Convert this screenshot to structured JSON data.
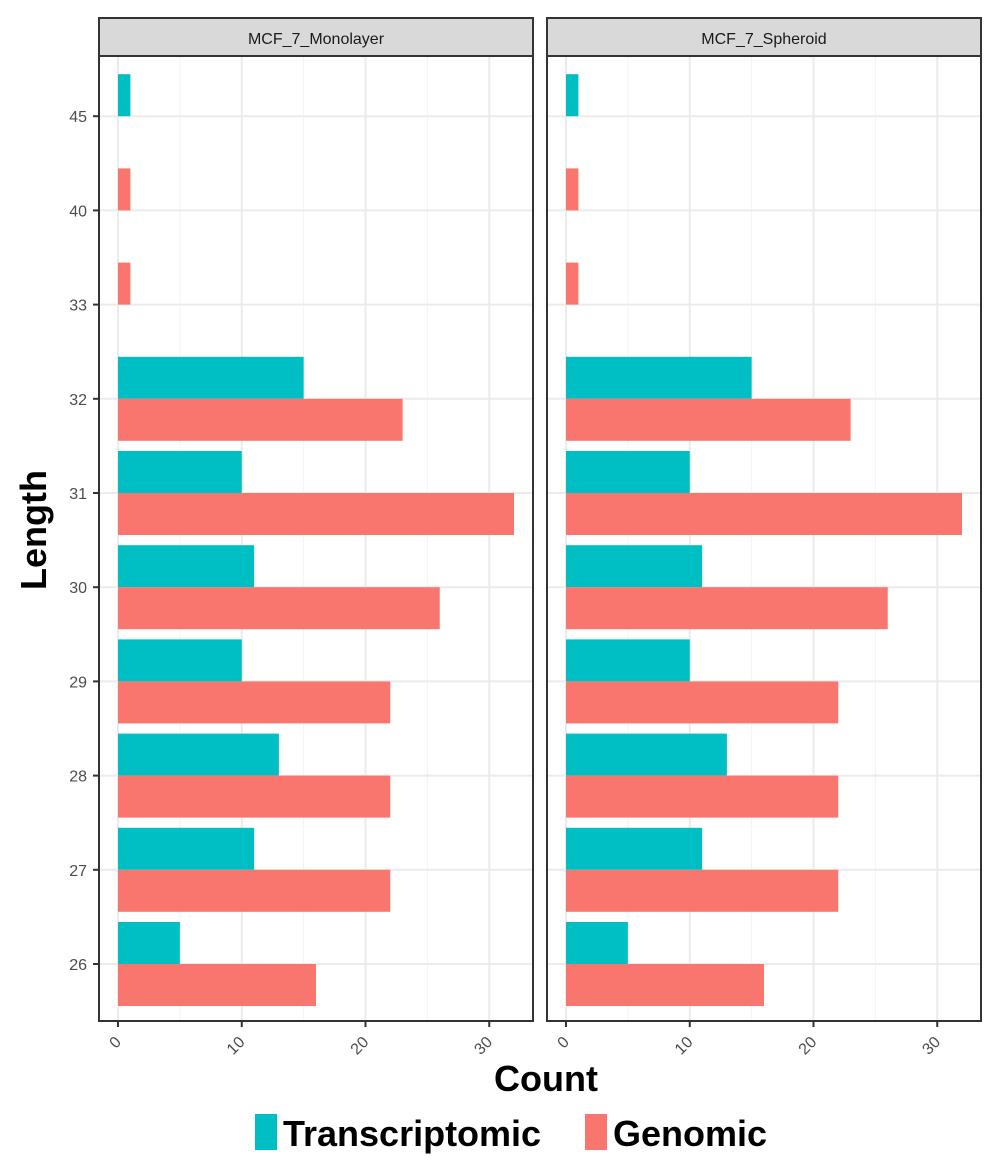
{
  "chart_data": {
    "type": "bar",
    "orientation": "horizontal",
    "facets": [
      "MCF_7_Monolayer",
      "MCF_7_Spheroid"
    ],
    "categories": [
      "26",
      "27",
      "28",
      "29",
      "30",
      "31",
      "32",
      "33",
      "40",
      "45"
    ],
    "series": [
      {
        "name": "Transcriptomic",
        "color": "#00BFC4",
        "values": [
          5,
          11,
          13,
          10,
          11,
          10,
          15,
          null,
          null,
          1
        ]
      },
      {
        "name": "Genomic",
        "color": "#F8766D",
        "values": [
          16,
          22,
          22,
          22,
          26,
          32,
          23,
          1,
          1,
          null
        ]
      }
    ],
    "xlabel": "Count",
    "ylabel": "Length",
    "xlim": [
      0,
      32
    ],
    "xticks": [
      "0",
      "10",
      "20",
      "30"
    ],
    "grid": true,
    "legend_position": "bottom"
  }
}
